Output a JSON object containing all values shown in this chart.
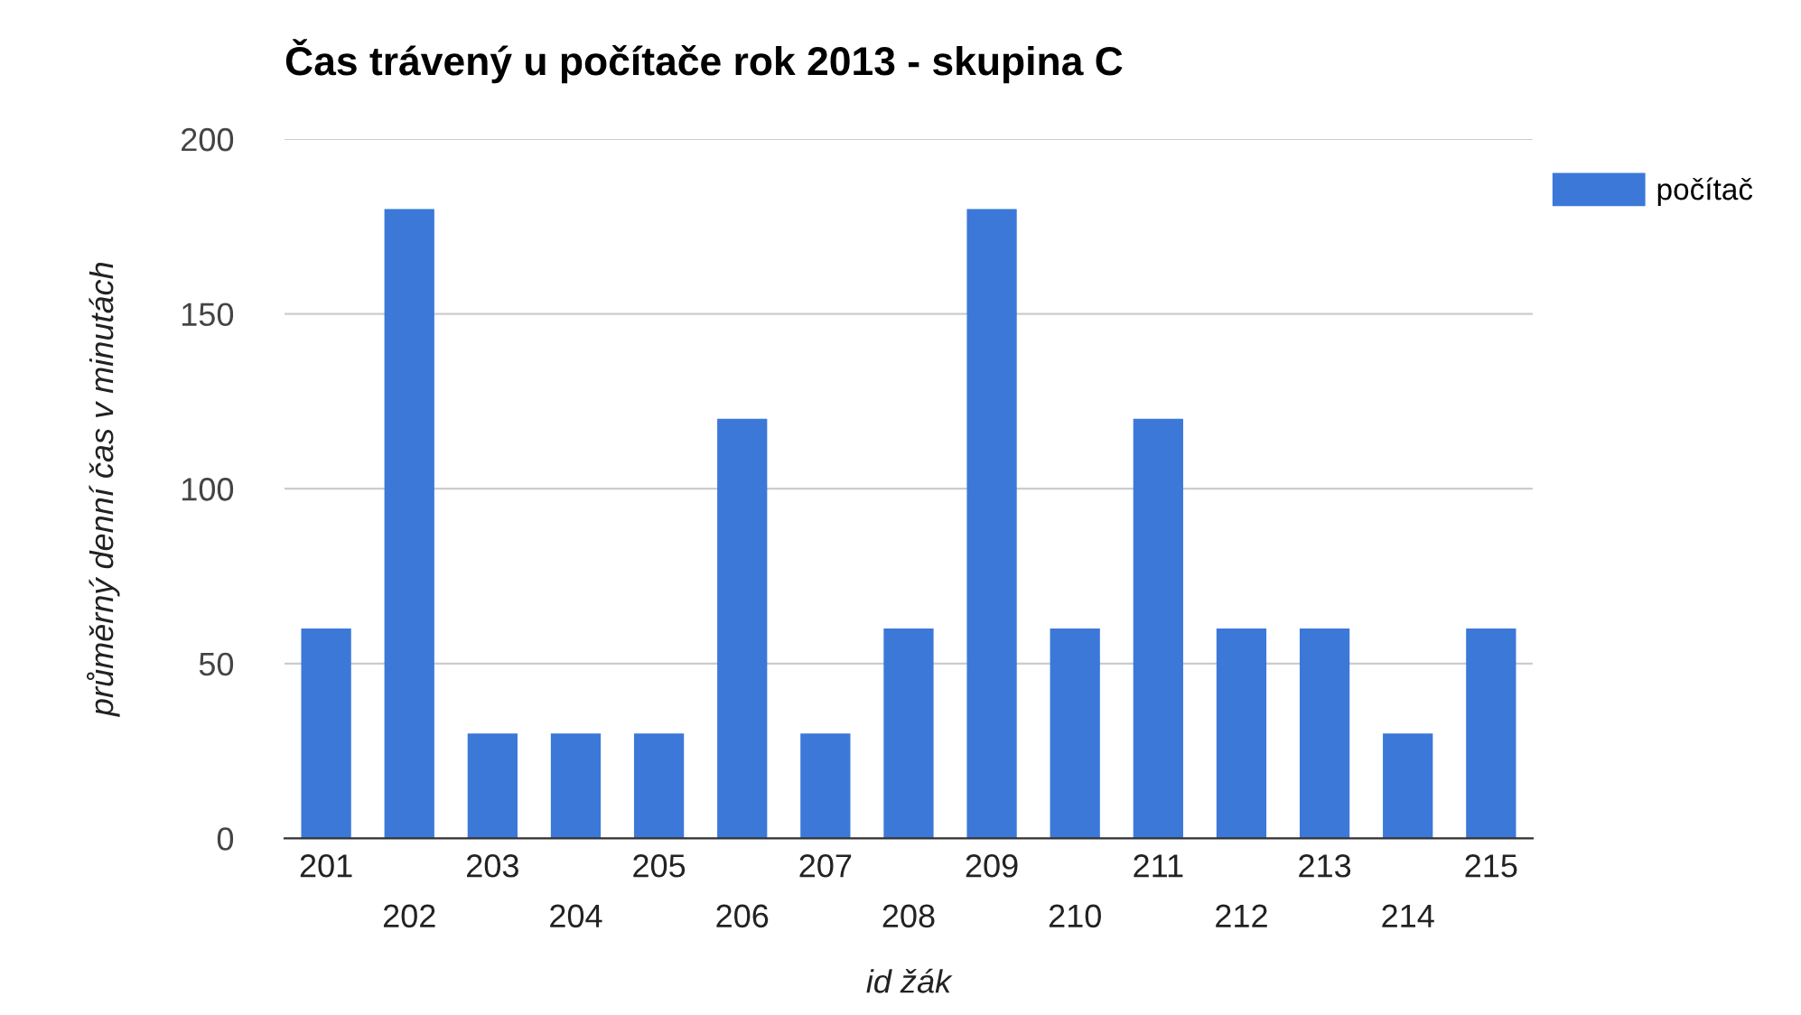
{
  "chart_data": {
    "type": "bar",
    "title": "Čas trávený u počítače rok 2013 - skupina C",
    "xlabel": "id žák",
    "ylabel": "průměrný denní čas v minutách",
    "categories": [
      "201",
      "202",
      "203",
      "204",
      "205",
      "206",
      "207",
      "208",
      "209",
      "210",
      "211",
      "212",
      "213",
      "214",
      "215"
    ],
    "series": [
      {
        "name": "počítač",
        "color": "#3c78d8",
        "values": [
          60,
          180,
          30,
          30,
          30,
          120,
          30,
          60,
          180,
          60,
          120,
          60,
          60,
          30,
          60
        ]
      }
    ],
    "ylim": [
      0,
      200
    ],
    "yticks": [
      0,
      50,
      100,
      150,
      200
    ],
    "grid": "y",
    "legend": "top right"
  }
}
